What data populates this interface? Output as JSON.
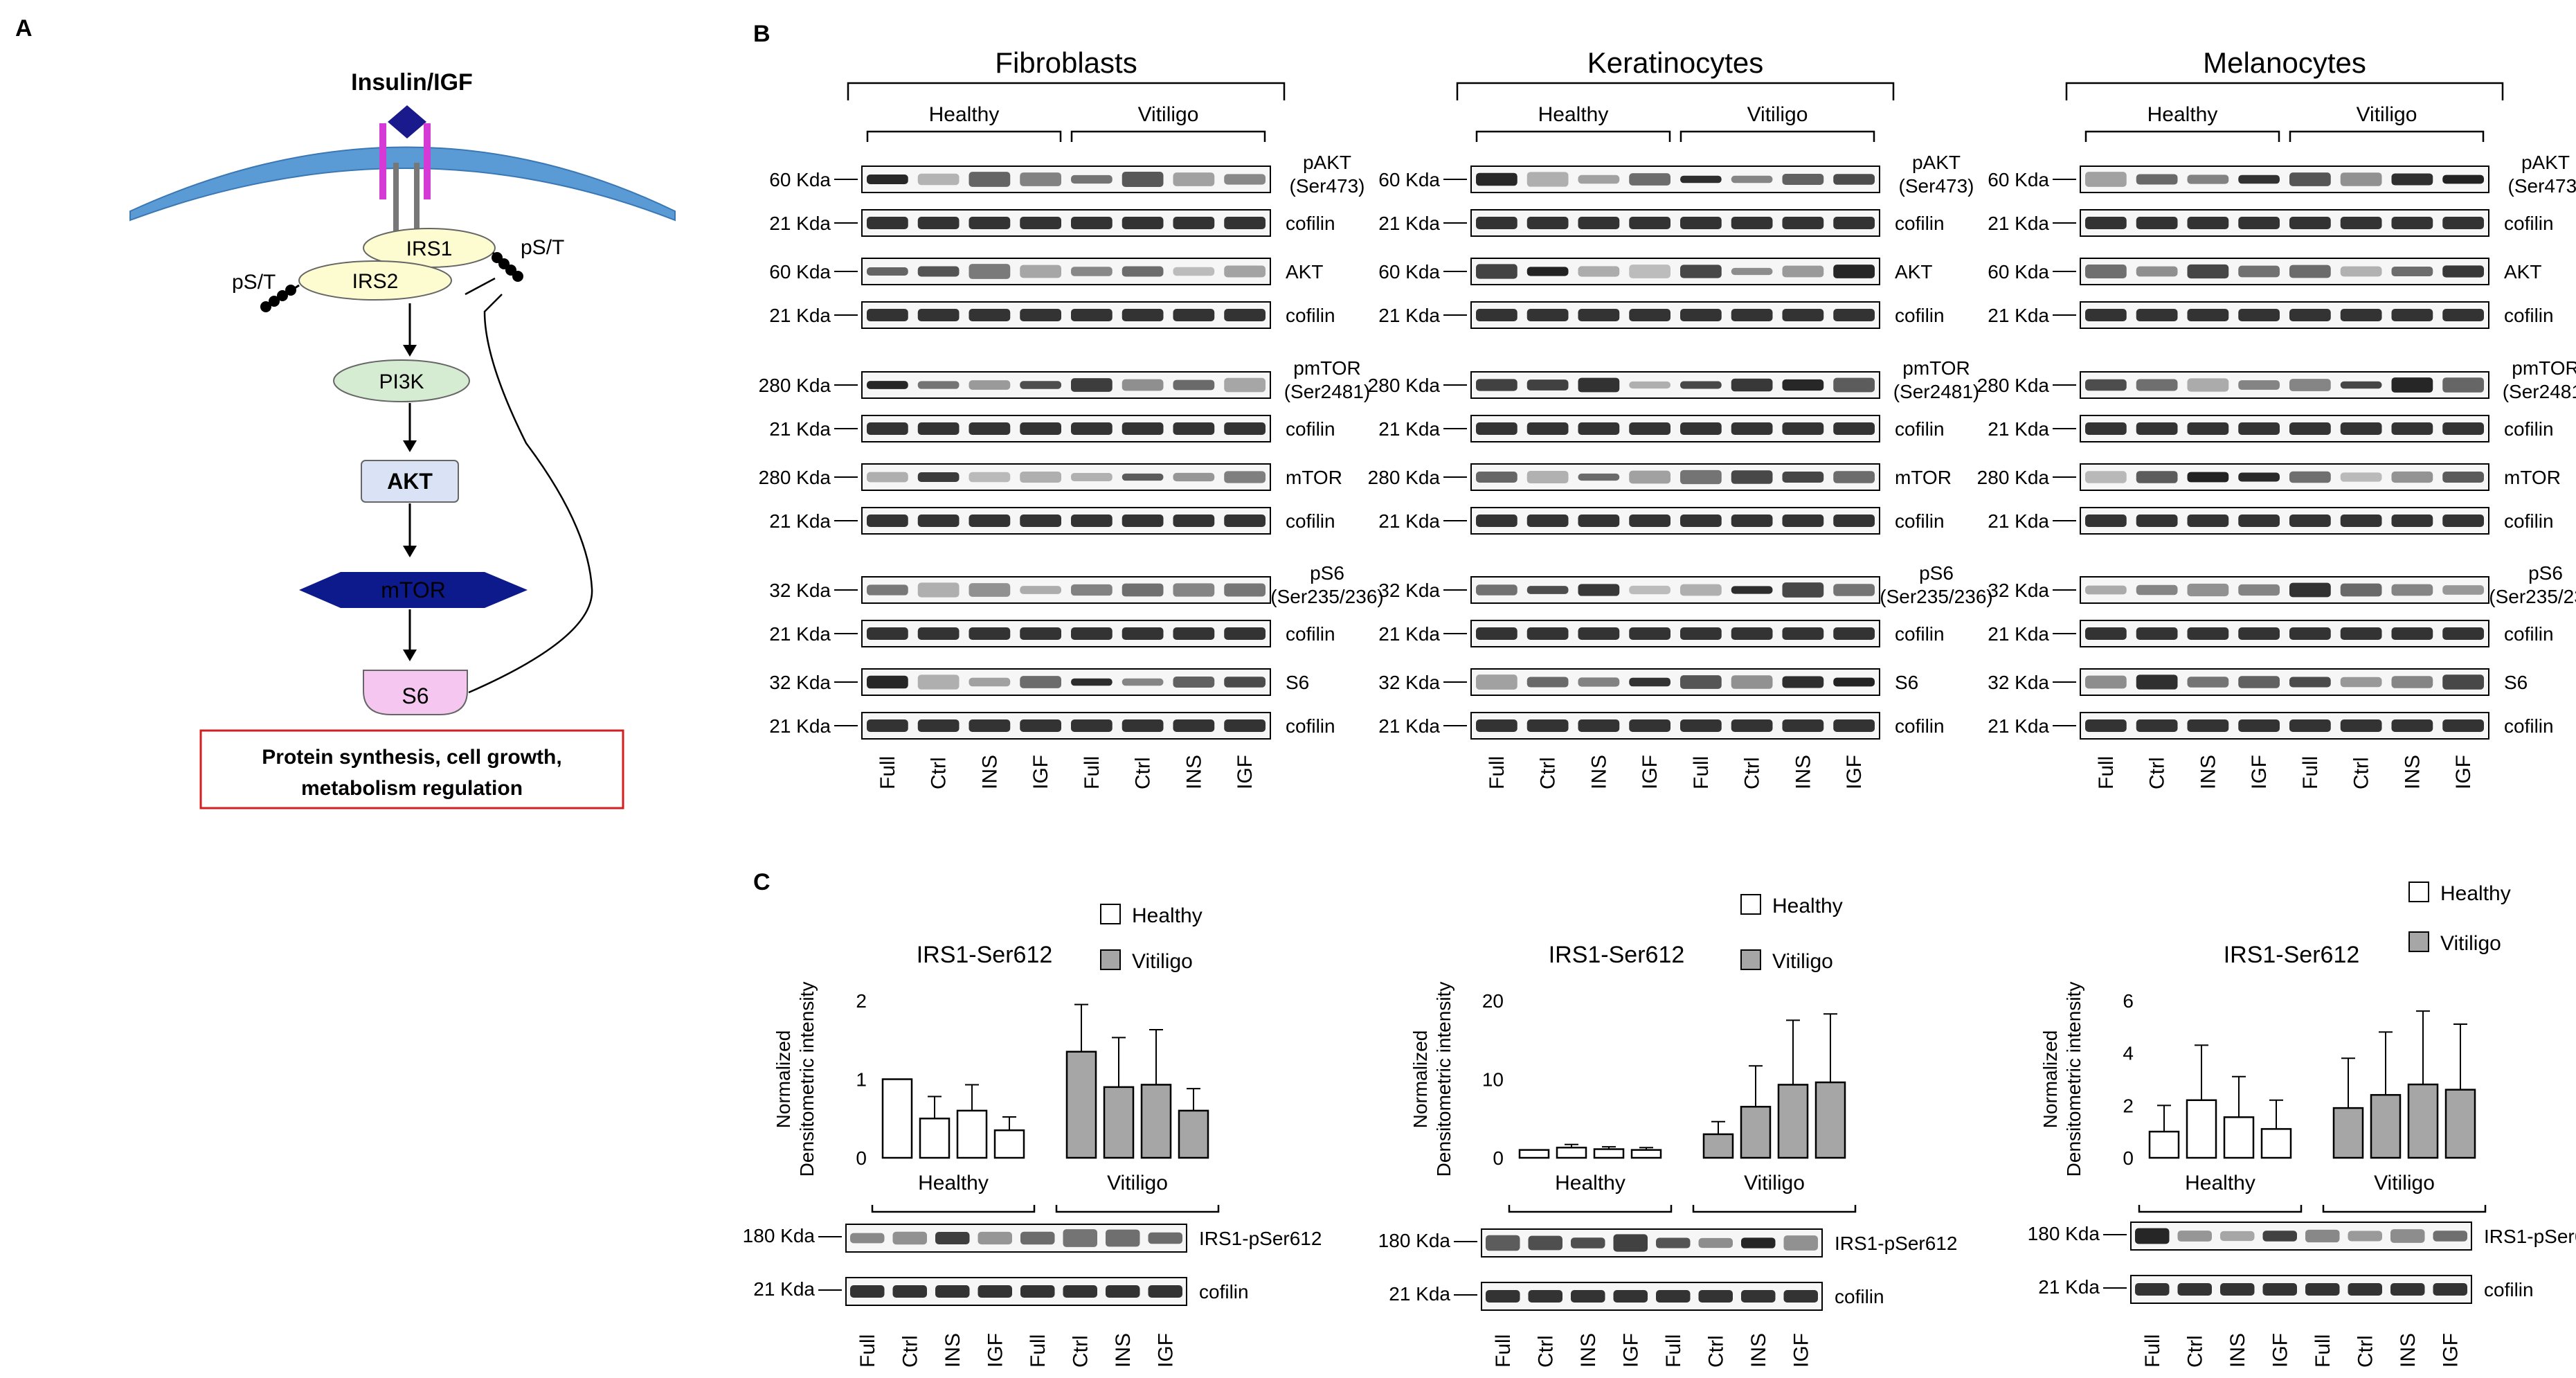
{
  "panel_labels": {
    "a": "A",
    "b": "B",
    "c": "C"
  },
  "panel_a": {
    "ligand": "Insulin/IGF",
    "irs1": "IRS1",
    "irs2": "IRS2",
    "phospho": "pS/T",
    "pi3k": "PI3K",
    "akt": "AKT",
    "mtor": "mTOR",
    "s6": "S6",
    "outcome_line1": "Protein synthesis, cell growth,",
    "outcome_line2": "metabolism regulation",
    "colors": {
      "membrane": "#5b9bd5",
      "receptor": "#d63ad6",
      "ligand": "#1a1a8c",
      "irs": "#fdfbd0",
      "pi3k": "#d5ecd2",
      "akt": "#d9e3f5",
      "mtor": "#0d1a8c",
      "s6": "#f5c7f0",
      "outcome_border": "#d21e1e"
    }
  },
  "panel_b": {
    "lane_labels": [
      "Full",
      "Ctrl",
      "INS",
      "IGF",
      "Full",
      "Ctrl",
      "INS",
      "IGF"
    ],
    "group_labels": [
      "Healthy",
      "Vitiligo"
    ],
    "blots": [
      {
        "cell_type": "Fibroblasts"
      },
      {
        "cell_type": "Keratinocytes"
      },
      {
        "cell_type": "Melanocytes"
      }
    ],
    "rows": [
      {
        "mw": "60 Kda",
        "target_line1": "pAKT",
        "target_line2": "(Ser473)"
      },
      {
        "mw": "21 Kda",
        "target_line1": "cofilin",
        "target_line2": ""
      },
      {
        "mw": "60 Kda",
        "target_line1": "AKT",
        "target_line2": ""
      },
      {
        "mw": "21 Kda",
        "target_line1": "cofilin",
        "target_line2": ""
      },
      {
        "mw": "280 Kda",
        "target_line1": "pmTOR",
        "target_line2": "(Ser2481)"
      },
      {
        "mw": "21 Kda",
        "target_line1": "cofilin",
        "target_line2": ""
      },
      {
        "mw": "280 Kda",
        "target_line1": "mTOR",
        "target_line2": ""
      },
      {
        "mw": "21 Kda",
        "target_line1": "cofilin",
        "target_line2": ""
      },
      {
        "mw": "32 Kda",
        "target_line1": "pS6",
        "target_line2": "(Ser235/236)"
      },
      {
        "mw": "21 Kda",
        "target_line1": "cofilin",
        "target_line2": ""
      },
      {
        "mw": "32 Kda",
        "target_line1": "S6",
        "target_line2": ""
      },
      {
        "mw": "21 Kda",
        "target_line1": "cofilin",
        "target_line2": ""
      }
    ]
  },
  "panel_c": {
    "legend": {
      "healthy": "Healthy",
      "vitiligo": "Vitiligo"
    },
    "ylabel_line1": "Normalized",
    "ylabel_line2": "Densitometric intensity",
    "blot_rows": [
      {
        "mw": "180 Kda",
        "target": "IRS1-pSer612"
      },
      {
        "mw": "21 Kda",
        "target": "cofilin"
      }
    ],
    "colors": {
      "healthy": "#ffffff",
      "vitiligo": "#a6a6a6"
    }
  },
  "chart_data": [
    {
      "type": "bar",
      "title": "IRS1-Ser612",
      "categories": [
        "Full",
        "Ctrl",
        "INS",
        "IGF"
      ],
      "groups": [
        "Healthy",
        "Vitiligo"
      ],
      "ylabel": "Normalized Densitometric intensity",
      "ylim": [
        0,
        2
      ],
      "yticks": [
        0,
        1,
        2
      ],
      "series": [
        {
          "name": "Healthy",
          "values": [
            1.0,
            0.5,
            0.6,
            0.35
          ],
          "errors": [
            0,
            0.28,
            0.33,
            0.17
          ]
        },
        {
          "name": "Vitiligo",
          "values": [
            1.35,
            0.9,
            0.93,
            0.6
          ],
          "errors": [
            0.6,
            0.63,
            0.7,
            0.28
          ]
        }
      ]
    },
    {
      "type": "bar",
      "title": "IRS1-Ser612",
      "categories": [
        "Full",
        "Ctrl",
        "INS",
        "IGF"
      ],
      "groups": [
        "Healthy",
        "Vitiligo"
      ],
      "ylabel": "Normalized Densitometric intensity",
      "ylim": [
        0,
        20
      ],
      "yticks": [
        0,
        10,
        20
      ],
      "series": [
        {
          "name": "Healthy",
          "values": [
            1.0,
            1.3,
            1.1,
            1.0
          ],
          "errors": [
            0,
            0.4,
            0.3,
            0.3
          ]
        },
        {
          "name": "Vitiligo",
          "values": [
            3.0,
            6.5,
            9.3,
            9.6
          ],
          "errors": [
            1.6,
            5.2,
            8.2,
            8.7
          ]
        }
      ]
    },
    {
      "type": "bar",
      "title": "IRS1-Ser612",
      "categories": [
        "Full",
        "Ctrl",
        "INS",
        "IGF"
      ],
      "groups": [
        "Healthy",
        "Vitiligo"
      ],
      "ylabel": "Normalized Densitometric intensity",
      "ylim": [
        0,
        6
      ],
      "yticks": [
        0,
        2,
        4,
        6
      ],
      "series": [
        {
          "name": "Healthy",
          "values": [
            1.0,
            2.2,
            1.55,
            1.1
          ],
          "errors": [
            1.0,
            2.1,
            1.55,
            1.1
          ]
        },
        {
          "name": "Vitiligo",
          "values": [
            1.9,
            2.4,
            2.8,
            2.6
          ],
          "errors": [
            1.9,
            2.4,
            2.8,
            2.5
          ]
        }
      ]
    }
  ]
}
